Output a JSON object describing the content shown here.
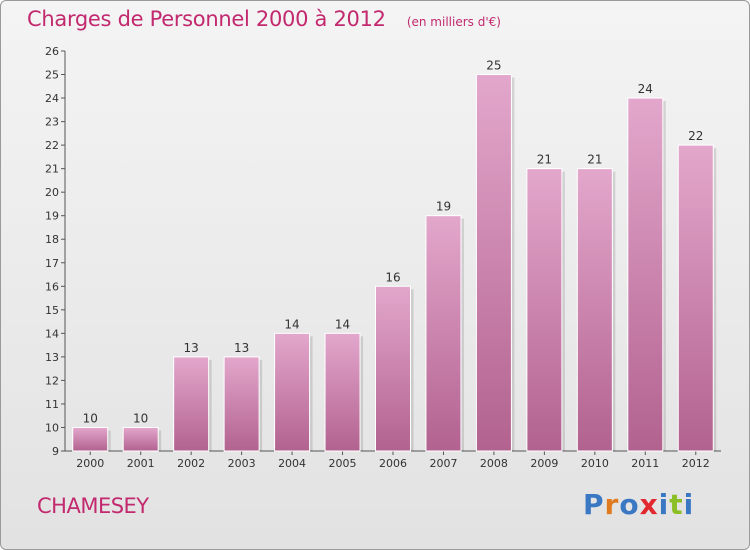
{
  "header": {
    "title": "Charges de Personnel 2000 à 2012",
    "subtitle": "(en milliers d'€)"
  },
  "footer": {
    "commune": "CHAMESEY",
    "brand": "Proxiti"
  },
  "colors": {
    "accent": "#c2296e",
    "bar_top": "#e3a7cc",
    "bar_bottom": "#b2628f",
    "brand_letters": [
      "#3b78c4",
      "#e07a1f",
      "#3b78c4",
      "#e2282f",
      "#3b78c4",
      "#8cbf26",
      "#3b78c4"
    ]
  },
  "chart_data": {
    "type": "bar",
    "categories": [
      "2000",
      "2001",
      "2002",
      "2003",
      "2004",
      "2005",
      "2006",
      "2007",
      "2008",
      "2009",
      "2010",
      "2011",
      "2012"
    ],
    "values": [
      10,
      10,
      13,
      13,
      14,
      14,
      16,
      19,
      25,
      21,
      21,
      24,
      22
    ],
    "ylim": [
      9,
      26
    ],
    "yticks": [
      9,
      10,
      11,
      12,
      13,
      14,
      15,
      16,
      17,
      18,
      19,
      20,
      21,
      22,
      23,
      24,
      25,
      26
    ],
    "title": "Charges de Personnel 2000 à 2012",
    "ylabel": "",
    "xlabel": "",
    "grid": false,
    "data_labels": true
  }
}
